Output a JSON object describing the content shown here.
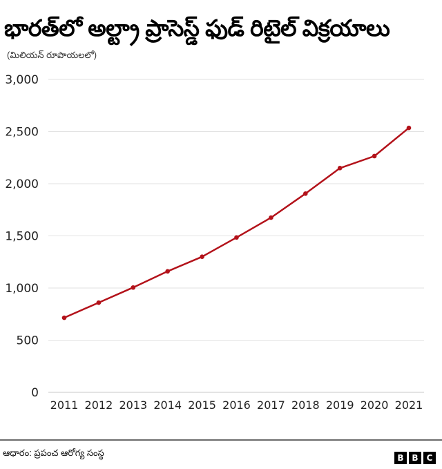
{
  "header": {
    "title": "భారత్‌లో అల్ట్రా ప్రాసెస్డ్ ఫుడ్ రిటైల్ విక్రయాలు",
    "subtitle": "(మిలియన్ రూపాయలలో)"
  },
  "footer": {
    "source": "ఆధారం: ప్రపంచ ఆరోగ్య సంస్థ",
    "logo_letters": [
      "B",
      "B",
      "C"
    ]
  },
  "colors": {
    "line": "#b3121a",
    "grid": "#e2e2e2",
    "baseline": "#c9c9c9"
  },
  "chart_data": {
    "type": "line",
    "title": "భారత్‌లో అల్ట్రా ప్రాసెస్డ్ ఫుడ్ రిటైల్ విక్రయాలు",
    "subtitle": "(మిలియన్ రూపాయలలో)",
    "xlabel": "",
    "ylabel": "",
    "categories": [
      "2011",
      "2012",
      "2013",
      "2014",
      "2015",
      "2016",
      "2017",
      "2018",
      "2019",
      "2020",
      "2021"
    ],
    "series": [
      {
        "name": "Retail sales",
        "values": [
          715,
          860,
          1005,
          1160,
          1300,
          1485,
          1675,
          1905,
          2150,
          2265,
          2535
        ]
      }
    ],
    "ylim": [
      0,
      3000
    ],
    "yticks": [
      0,
      500,
      1000,
      1500,
      2000,
      2500,
      3000
    ],
    "ytick_labels": [
      "0",
      "500",
      "1,000",
      "1,500",
      "2,000",
      "2,500",
      "3,000"
    ],
    "grid": true,
    "legend": "none",
    "source": "ఆధారం: ప్రపంచ ఆరోగ్య సంస్థ"
  }
}
